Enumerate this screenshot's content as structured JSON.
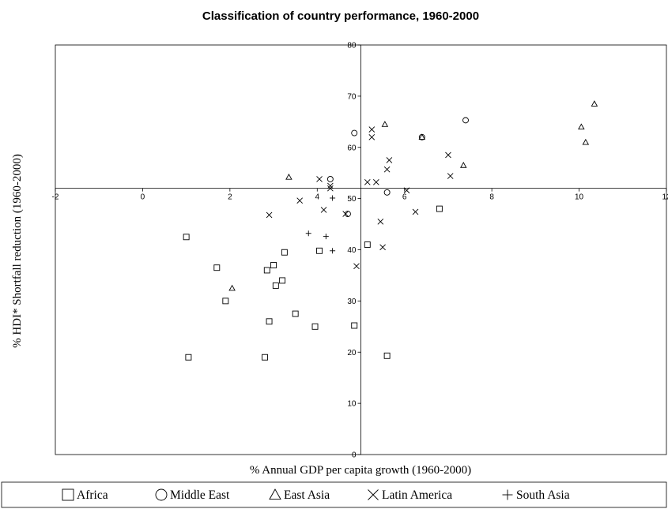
{
  "chart_data": {
    "type": "scatter",
    "title": "Classification of country performance, 1960-2000",
    "xlabel": "% Annual GDP per capita growth (1960-2000)",
    "ylabel": "% HDI* Shortfall reduction (1960-2000)",
    "xlim": [
      -2,
      12
    ],
    "ylim": [
      0,
      80
    ],
    "x_ticks": [
      "-2",
      "0",
      "2",
      "4",
      "6",
      "8",
      "10",
      "12"
    ],
    "y_ticks": [
      "0",
      "10",
      "20",
      "30",
      "40",
      "50",
      "60",
      "70",
      "80"
    ],
    "grid": false,
    "legend_position": "bottom",
    "series": [
      {
        "name": "Africa",
        "marker": "square",
        "points": [
          [
            1.0,
            42.5
          ],
          [
            1.05,
            19.0
          ],
          [
            1.7,
            36.5
          ],
          [
            1.9,
            30.0
          ],
          [
            2.8,
            19.0
          ],
          [
            2.85,
            36.0
          ],
          [
            2.9,
            26.0
          ],
          [
            3.0,
            37.0
          ],
          [
            3.05,
            33.0
          ],
          [
            3.2,
            34.0
          ],
          [
            3.25,
            39.5
          ],
          [
            3.5,
            27.5
          ],
          [
            3.95,
            25.0
          ],
          [
            4.05,
            39.8
          ],
          [
            4.85,
            25.2
          ],
          [
            5.15,
            41.0
          ],
          [
            5.6,
            19.3
          ],
          [
            6.8,
            48.0
          ]
        ]
      },
      {
        "name": "Middle East",
        "marker": "circle",
        "points": [
          [
            4.3,
            53.8
          ],
          [
            4.7,
            47.0
          ],
          [
            4.85,
            62.8
          ],
          [
            5.6,
            51.2
          ],
          [
            6.4,
            62.0
          ],
          [
            7.4,
            65.3
          ]
        ]
      },
      {
        "name": "East Asia",
        "marker": "triangle",
        "points": [
          [
            2.05,
            32.5
          ],
          [
            3.35,
            54.2
          ],
          [
            5.55,
            64.5
          ],
          [
            6.4,
            62.0
          ],
          [
            7.35,
            56.5
          ],
          [
            10.05,
            64.0
          ],
          [
            10.15,
            61.0
          ],
          [
            10.35,
            68.5
          ]
        ]
      },
      {
        "name": "Latin America",
        "marker": "x",
        "points": [
          [
            2.9,
            46.8
          ],
          [
            3.6,
            49.6
          ],
          [
            4.05,
            53.8
          ],
          [
            4.15,
            47.8
          ],
          [
            4.3,
            52.5
          ],
          [
            4.3,
            52.0
          ],
          [
            4.65,
            47.0
          ],
          [
            4.9,
            36.8
          ],
          [
            5.15,
            53.2
          ],
          [
            5.25,
            63.5
          ],
          [
            5.25,
            62.0
          ],
          [
            5.35,
            53.2
          ],
          [
            5.45,
            45.5
          ],
          [
            5.5,
            40.5
          ],
          [
            5.6,
            55.7
          ],
          [
            5.65,
            57.5
          ],
          [
            6.05,
            51.6
          ],
          [
            6.25,
            47.4
          ],
          [
            7.0,
            58.5
          ],
          [
            7.05,
            54.4
          ]
        ]
      },
      {
        "name": "South Asia",
        "marker": "plus",
        "points": [
          [
            3.8,
            43.2
          ],
          [
            4.2,
            42.6
          ],
          [
            4.35,
            39.8
          ],
          [
            4.35,
            50.1
          ]
        ]
      }
    ]
  }
}
